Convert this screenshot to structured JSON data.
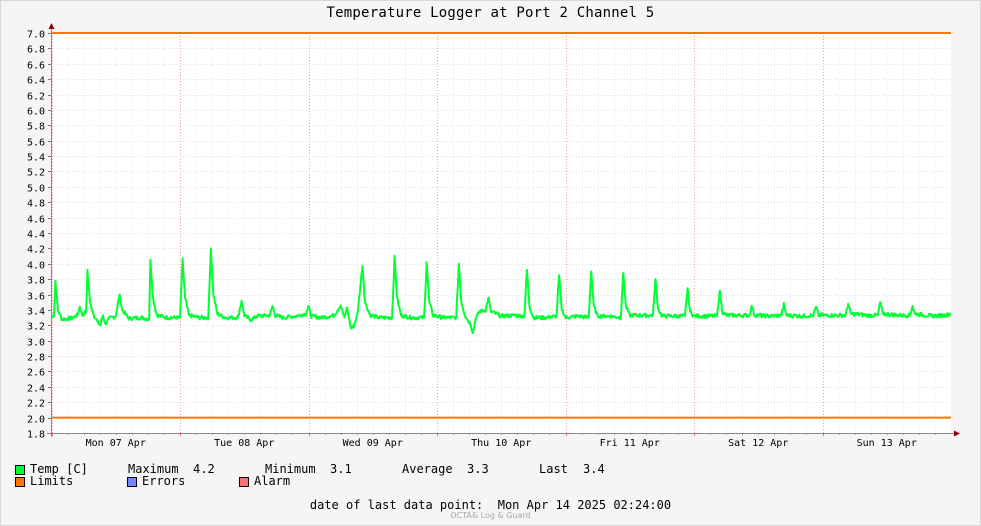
{
  "title": "Temperature Logger at Port 2 Channel 5",
  "colors": {
    "temp": "#00ff33",
    "limits": "#ff7700",
    "errors": "#7088ff",
    "alarm": "#ff7070"
  },
  "legend": {
    "temp_label": "Temp [C]",
    "max_label": "Maximum",
    "max_value": "4.2",
    "min_label": "Minimum",
    "min_value": "3.1",
    "avg_label": "Average",
    "avg_value": "3.3",
    "last_label": "Last",
    "last_value": "3.4",
    "limits_label": "Limits",
    "errors_label": "Errors",
    "alarm_label": "Alarm"
  },
  "footer": {
    "last_point_label": "date of last data point:",
    "last_point_value": "Mon Apr 14 2025 02:24:00",
    "credit": "OCTA& Log & Guard"
  },
  "chart_data": {
    "type": "line",
    "title": "Temperature Logger at Port 2 Channel 5",
    "ylim": [
      1.8,
      7.0
    ],
    "yticks": [
      1.8,
      2.0,
      2.2,
      2.4,
      2.6,
      2.8,
      3.0,
      3.2,
      3.4,
      3.6,
      3.8,
      4.0,
      4.2,
      4.4,
      4.6,
      4.8,
      5.0,
      5.2,
      5.4,
      5.6,
      5.8,
      6.0,
      6.2,
      6.4,
      6.6,
      6.8,
      7.0
    ],
    "yticklabels": [
      "1.8",
      "2.0",
      "2.2",
      "2.4",
      "2.6",
      "2.8",
      "3.0",
      "3.2",
      "3.4",
      "3.6",
      "3.8",
      "4.0",
      "4.2",
      "4.4",
      "4.6",
      "4.8",
      "5.0",
      "5.2",
      "5.4",
      "5.6",
      "5.8",
      "6.0",
      "6.2",
      "6.4",
      "6.6",
      "6.8",
      "7.0"
    ],
    "xlim_days": [
      0,
      7
    ],
    "xticklabels": [
      "Mon 07 Apr",
      "Tue 08 Apr",
      "Wed 09 Apr",
      "Thu 10 Apr",
      "Fri 11 Apr",
      "Sat 12 Apr",
      "Sun 13 Apr"
    ],
    "grid": true,
    "limits": [
      {
        "name": "Limits",
        "value": 7.0
      },
      {
        "name": "Limits",
        "value": 2.0
      }
    ],
    "series": [
      {
        "name": "Temp [C]",
        "baseline": 3.3,
        "points": [
          [
            0.0,
            3.32
          ],
          [
            0.02,
            3.33
          ],
          [
            0.03,
            3.78
          ],
          [
            0.05,
            3.4
          ],
          [
            0.08,
            3.28
          ],
          [
            0.15,
            3.29
          ],
          [
            0.2,
            3.33
          ],
          [
            0.22,
            3.44
          ],
          [
            0.24,
            3.33
          ],
          [
            0.27,
            3.38
          ],
          [
            0.28,
            3.92
          ],
          [
            0.3,
            3.5
          ],
          [
            0.33,
            3.33
          ],
          [
            0.36,
            3.24
          ],
          [
            0.38,
            3.2
          ],
          [
            0.4,
            3.33
          ],
          [
            0.42,
            3.22
          ],
          [
            0.45,
            3.29
          ],
          [
            0.5,
            3.32
          ],
          [
            0.53,
            3.6
          ],
          [
            0.55,
            3.4
          ],
          [
            0.6,
            3.29
          ],
          [
            0.7,
            3.3
          ],
          [
            0.76,
            3.28
          ],
          [
            0.77,
            4.05
          ],
          [
            0.79,
            3.55
          ],
          [
            0.82,
            3.33
          ],
          [
            0.9,
            3.3
          ],
          [
            1.0,
            3.3
          ],
          [
            1.02,
            4.05
          ],
          [
            1.04,
            3.55
          ],
          [
            1.07,
            3.33
          ],
          [
            1.15,
            3.3
          ],
          [
            1.22,
            3.3
          ],
          [
            1.24,
            4.2
          ],
          [
            1.26,
            3.6
          ],
          [
            1.29,
            3.35
          ],
          [
            1.35,
            3.3
          ],
          [
            1.45,
            3.3
          ],
          [
            1.48,
            3.52
          ],
          [
            1.5,
            3.33
          ],
          [
            1.55,
            3.27
          ],
          [
            1.6,
            3.32
          ],
          [
            1.7,
            3.33
          ],
          [
            1.72,
            3.45
          ],
          [
            1.74,
            3.33
          ],
          [
            1.8,
            3.3
          ],
          [
            1.9,
            3.32
          ],
          [
            1.98,
            3.35
          ],
          [
            2.0,
            3.45
          ],
          [
            2.02,
            3.32
          ],
          [
            2.1,
            3.3
          ],
          [
            2.2,
            3.33
          ],
          [
            2.25,
            3.46
          ],
          [
            2.28,
            3.3
          ],
          [
            2.3,
            3.43
          ],
          [
            2.33,
            3.16
          ],
          [
            2.35,
            3.18
          ],
          [
            2.38,
            3.33
          ],
          [
            2.42,
            3.97
          ],
          [
            2.44,
            3.5
          ],
          [
            2.48,
            3.33
          ],
          [
            2.55,
            3.3
          ],
          [
            2.65,
            3.3
          ],
          [
            2.67,
            4.08
          ],
          [
            2.69,
            3.55
          ],
          [
            2.72,
            3.33
          ],
          [
            2.8,
            3.3
          ],
          [
            2.9,
            3.3
          ],
          [
            2.92,
            4.02
          ],
          [
            2.94,
            3.5
          ],
          [
            2.97,
            3.33
          ],
          [
            3.05,
            3.3
          ],
          [
            3.15,
            3.3
          ],
          [
            3.17,
            4.0
          ],
          [
            3.19,
            3.5
          ],
          [
            3.22,
            3.32
          ],
          [
            3.26,
            3.22
          ],
          [
            3.28,
            3.1
          ],
          [
            3.3,
            3.28
          ],
          [
            3.33,
            3.38
          ],
          [
            3.38,
            3.4
          ],
          [
            3.4,
            3.56
          ],
          [
            3.42,
            3.38
          ],
          [
            3.5,
            3.32
          ],
          [
            3.6,
            3.33
          ],
          [
            3.68,
            3.32
          ],
          [
            3.7,
            3.92
          ],
          [
            3.72,
            3.45
          ],
          [
            3.75,
            3.3
          ],
          [
            3.85,
            3.3
          ],
          [
            3.93,
            3.32
          ],
          [
            3.95,
            3.85
          ],
          [
            3.97,
            3.42
          ],
          [
            4.0,
            3.3
          ],
          [
            4.1,
            3.32
          ],
          [
            4.18,
            3.3
          ],
          [
            4.2,
            3.9
          ],
          [
            4.22,
            3.45
          ],
          [
            4.25,
            3.32
          ],
          [
            4.35,
            3.32
          ],
          [
            4.43,
            3.3
          ],
          [
            4.45,
            3.88
          ],
          [
            4.47,
            3.45
          ],
          [
            4.5,
            3.33
          ],
          [
            4.6,
            3.33
          ],
          [
            4.68,
            3.33
          ],
          [
            4.7,
            3.8
          ],
          [
            4.72,
            3.42
          ],
          [
            4.75,
            3.32
          ],
          [
            4.85,
            3.32
          ],
          [
            4.93,
            3.32
          ],
          [
            4.95,
            3.68
          ],
          [
            4.97,
            3.38
          ],
          [
            5.0,
            3.32
          ],
          [
            5.1,
            3.32
          ],
          [
            5.18,
            3.32
          ],
          [
            5.2,
            3.65
          ],
          [
            5.22,
            3.38
          ],
          [
            5.25,
            3.33
          ],
          [
            5.35,
            3.33
          ],
          [
            5.43,
            3.33
          ],
          [
            5.45,
            3.45
          ],
          [
            5.47,
            3.33
          ],
          [
            5.6,
            3.32
          ],
          [
            5.68,
            3.33
          ],
          [
            5.7,
            3.47
          ],
          [
            5.72,
            3.33
          ],
          [
            5.85,
            3.32
          ],
          [
            5.93,
            3.33
          ],
          [
            5.95,
            3.44
          ],
          [
            5.97,
            3.33
          ],
          [
            6.1,
            3.33
          ],
          [
            6.18,
            3.33
          ],
          [
            6.2,
            3.48
          ],
          [
            6.22,
            3.35
          ],
          [
            6.35,
            3.33
          ],
          [
            6.43,
            3.33
          ],
          [
            6.45,
            3.5
          ],
          [
            6.47,
            3.35
          ],
          [
            6.6,
            3.33
          ],
          [
            6.68,
            3.33
          ],
          [
            6.7,
            3.45
          ],
          [
            6.72,
            3.35
          ],
          [
            6.85,
            3.32
          ],
          [
            6.95,
            3.33
          ],
          [
            7.0,
            3.35
          ]
        ]
      }
    ]
  }
}
